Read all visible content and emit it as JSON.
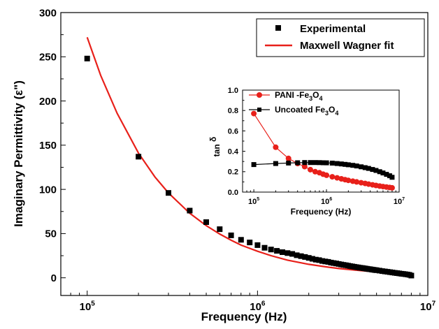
{
  "chart_data": [
    {
      "type": "scatter",
      "xlabel": "Frequency (Hz)",
      "ylabel": "Imaginary Permittivity (ε\")",
      "xscale": "log",
      "xlim": [
        70000,
        10000000
      ],
      "ylim": [
        -20,
        300
      ],
      "x_ticks": [
        {
          "value": 100000,
          "base": "10",
          "exp": "5"
        },
        {
          "value": 1000000,
          "base": "10",
          "exp": "6"
        },
        {
          "value": 10000000,
          "base": "10",
          "exp": "7"
        }
      ],
      "y_ticks": [
        {
          "value": 0,
          "label": "0"
        },
        {
          "value": 50,
          "label": "50"
        },
        {
          "value": 100,
          "label": "100"
        },
        {
          "value": 150,
          "label": "150"
        },
        {
          "value": 200,
          "label": "200"
        },
        {
          "value": 250,
          "label": "250"
        },
        {
          "value": 300,
          "label": "300"
        }
      ],
      "legend_position": "top-right",
      "series": [
        {
          "name": "Experimental",
          "kind": "markers",
          "marker": "square",
          "color": "#000000",
          "x": [
            100000,
            200000,
            300000,
            400000,
            500000,
            600000,
            700000,
            800000,
            900000,
            1000000,
            1100000,
            1200000,
            1300000,
            1400000,
            1500000,
            1600000,
            1700000,
            1800000,
            1900000,
            2000000,
            2100000,
            2200000,
            2300000,
            2400000,
            2500000,
            2600000,
            2700000,
            2800000,
            2900000,
            3000000,
            3100000,
            3200000,
            3300000,
            3400000,
            3500000,
            3600000,
            3700000,
            3800000,
            3900000,
            4000000,
            4100000,
            4200000,
            4300000,
            4400000,
            4500000,
            4600000,
            4700000,
            4800000,
            4900000,
            5000000,
            5200000,
            5400000,
            5600000,
            5800000,
            6000000,
            6200000,
            6400000,
            6600000,
            6800000,
            7000000,
            7200000,
            7400000,
            7600000,
            7800000,
            8000000
          ],
          "y": [
            248,
            137,
            96,
            76,
            63,
            55,
            48,
            43,
            40,
            37,
            34,
            32,
            30.5,
            29,
            28,
            27,
            25.5,
            24.5,
            23.5,
            22.5,
            21.5,
            20.5,
            20,
            19,
            18.5,
            18,
            17.2,
            16.7,
            16.2,
            15.6,
            15.1,
            14.6,
            14.2,
            13.7,
            13.3,
            12.9,
            12.5,
            12.1,
            11.8,
            11.4,
            11.1,
            10.8,
            10.5,
            10.2,
            9.9,
            9.6,
            9.3,
            9.1,
            8.8,
            8.6,
            8.1,
            7.6,
            7.2,
            6.8,
            6.4,
            6.0,
            5.6,
            5.3,
            5.0,
            4.6,
            4.3,
            4.0,
            3.7,
            3.3,
            2.5
          ]
        },
        {
          "name": "Maxwell Wagner fit",
          "kind": "line",
          "color": "#e8201a",
          "x": [
            100000,
            120000,
            150000,
            200000,
            250000,
            300000,
            400000,
            500000,
            600000,
            700000,
            800000,
            1000000,
            1200000,
            1500000,
            2000000,
            2500000,
            3000000,
            4000000,
            5000000,
            6000000,
            7000000,
            8000000
          ],
          "y": [
            272,
            229,
            186,
            141,
            114,
            96,
            73,
            59,
            49.5,
            42.5,
            37,
            30,
            25,
            20,
            15.2,
            12.5,
            10.5,
            8.2,
            6.6,
            5.4,
            4.3,
            3.3
          ]
        }
      ]
    },
    {
      "type": "line",
      "xlabel": "Frequency (Hz)",
      "ylabel": "tan δ",
      "ylabel_main": "tan",
      "ylabel_symbol": "δ",
      "xscale": "log",
      "xlim": [
        70000,
        10000000
      ],
      "ylim": [
        0,
        1.0
      ],
      "x_ticks": [
        {
          "value": 100000,
          "base": "10",
          "exp": "5"
        },
        {
          "value": 1000000,
          "base": "10",
          "exp": "6"
        },
        {
          "value": 10000000,
          "base": "10",
          "exp": "7"
        }
      ],
      "y_ticks": [
        {
          "value": 0,
          "label": "0.0"
        },
        {
          "value": 0.2,
          "label": "0.2"
        },
        {
          "value": 0.4,
          "label": "0.4"
        },
        {
          "value": 0.6,
          "label": "0.6"
        },
        {
          "value": 0.8,
          "label": "0.8"
        },
        {
          "value": 1.0,
          "label": "1.0"
        }
      ],
      "legend_position": "top-left",
      "series": [
        {
          "name": "PANI -Fe3O4",
          "legend_parts": [
            "PANI -Fe",
            "3",
            "O",
            "4"
          ],
          "marker": "circle",
          "color": "#e8201a",
          "x": [
            100000,
            200000,
            300000,
            400000,
            500000,
            600000,
            700000,
            800000,
            900000,
            1000000,
            1200000,
            1400000,
            1600000,
            1800000,
            2000000,
            2300000,
            2600000,
            3000000,
            3400000,
            3800000,
            4300000,
            4800000,
            5400000,
            6000000,
            6700000,
            7400000,
            8000000
          ],
          "y": [
            0.77,
            0.44,
            0.33,
            0.28,
            0.25,
            0.22,
            0.2,
            0.19,
            0.175,
            0.165,
            0.15,
            0.14,
            0.13,
            0.122,
            0.115,
            0.107,
            0.1,
            0.092,
            0.085,
            0.078,
            0.071,
            0.065,
            0.059,
            0.054,
            0.049,
            0.045,
            0.042
          ]
        },
        {
          "name": "Uncoated Fe3O4",
          "legend_parts": [
            "Uncoated Fe",
            "3",
            "O",
            "4"
          ],
          "marker": "square",
          "color": "#000000",
          "x": [
            100000,
            200000,
            300000,
            400000,
            500000,
            600000,
            700000,
            800000,
            900000,
            1000000,
            1200000,
            1400000,
            1600000,
            1800000,
            2000000,
            2300000,
            2600000,
            3000000,
            3400000,
            3800000,
            4300000,
            4800000,
            5400000,
            6000000,
            6700000,
            7400000,
            8000000
          ],
          "y": [
            0.27,
            0.28,
            0.285,
            0.288,
            0.29,
            0.29,
            0.29,
            0.289,
            0.288,
            0.287,
            0.284,
            0.28,
            0.276,
            0.272,
            0.268,
            0.262,
            0.256,
            0.248,
            0.24,
            0.232,
            0.222,
            0.212,
            0.2,
            0.188,
            0.174,
            0.16,
            0.145
          ]
        }
      ]
    }
  ]
}
